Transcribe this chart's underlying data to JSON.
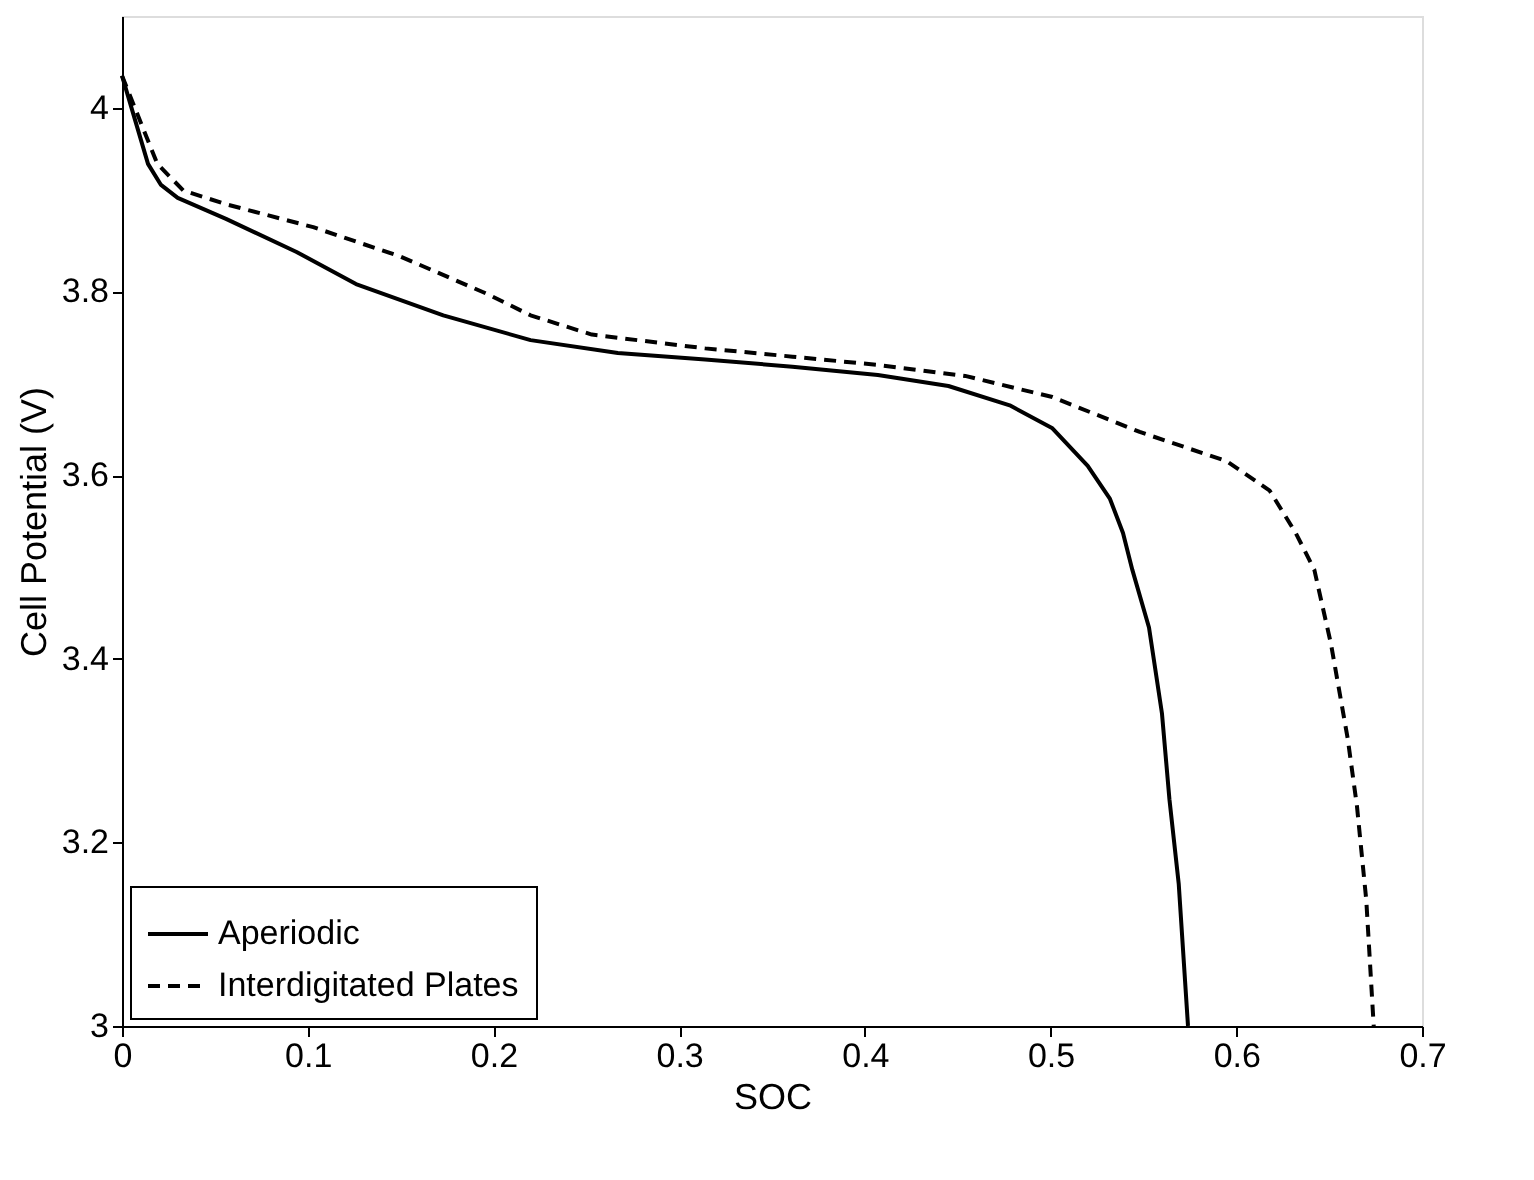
{
  "chart_data": {
    "type": "line",
    "xlabel": "SOC",
    "ylabel": "Cell Potential (V)",
    "xlim": [
      0,
      0.7
    ],
    "ylim": [
      3,
      4.1
    ],
    "xticks": [
      0,
      0.1,
      0.2,
      0.3,
      0.4,
      0.5,
      0.6,
      0.7
    ],
    "yticks": [
      3,
      3.2,
      3.4,
      3.6,
      3.8,
      4
    ],
    "grid": false,
    "legend": "bottom left",
    "series": [
      {
        "name": "Aperiodic",
        "color": "#000000",
        "line_style": "solid",
        "x": [
          0,
          0.014,
          0.021,
          0.03,
          0.056,
          0.094,
          0.126,
          0.173,
          0.22,
          0.267,
          0.314,
          0.361,
          0.407,
          0.445,
          0.478,
          0.501,
          0.52,
          0.532,
          0.539,
          0.544,
          0.553,
          0.56,
          0.564,
          0.569,
          0.574
        ],
        "values": [
          4.035,
          3.939,
          3.916,
          3.902,
          3.879,
          3.843,
          3.808,
          3.774,
          3.747,
          3.733,
          3.726,
          3.718,
          3.709,
          3.697,
          3.676,
          3.651,
          3.61,
          3.574,
          3.537,
          3.497,
          3.434,
          3.34,
          3.247,
          3.155,
          3.0
        ]
      },
      {
        "name": "Interdigitated Plates",
        "color": "#000000",
        "line_style": "dashed",
        "x": [
          0,
          0.019,
          0.033,
          0.056,
          0.103,
          0.15,
          0.197,
          0.22,
          0.253,
          0.314,
          0.361,
          0.407,
          0.454,
          0.501,
          0.548,
          0.595,
          0.618,
          0.632,
          0.642,
          0.651,
          0.66,
          0.665,
          0.67,
          0.674
        ],
        "values": [
          4.035,
          3.939,
          3.91,
          3.895,
          3.87,
          3.838,
          3.797,
          3.774,
          3.753,
          3.738,
          3.729,
          3.72,
          3.708,
          3.685,
          3.647,
          3.615,
          3.583,
          3.537,
          3.497,
          3.416,
          3.313,
          3.239,
          3.137,
          3.0
        ]
      }
    ]
  }
}
